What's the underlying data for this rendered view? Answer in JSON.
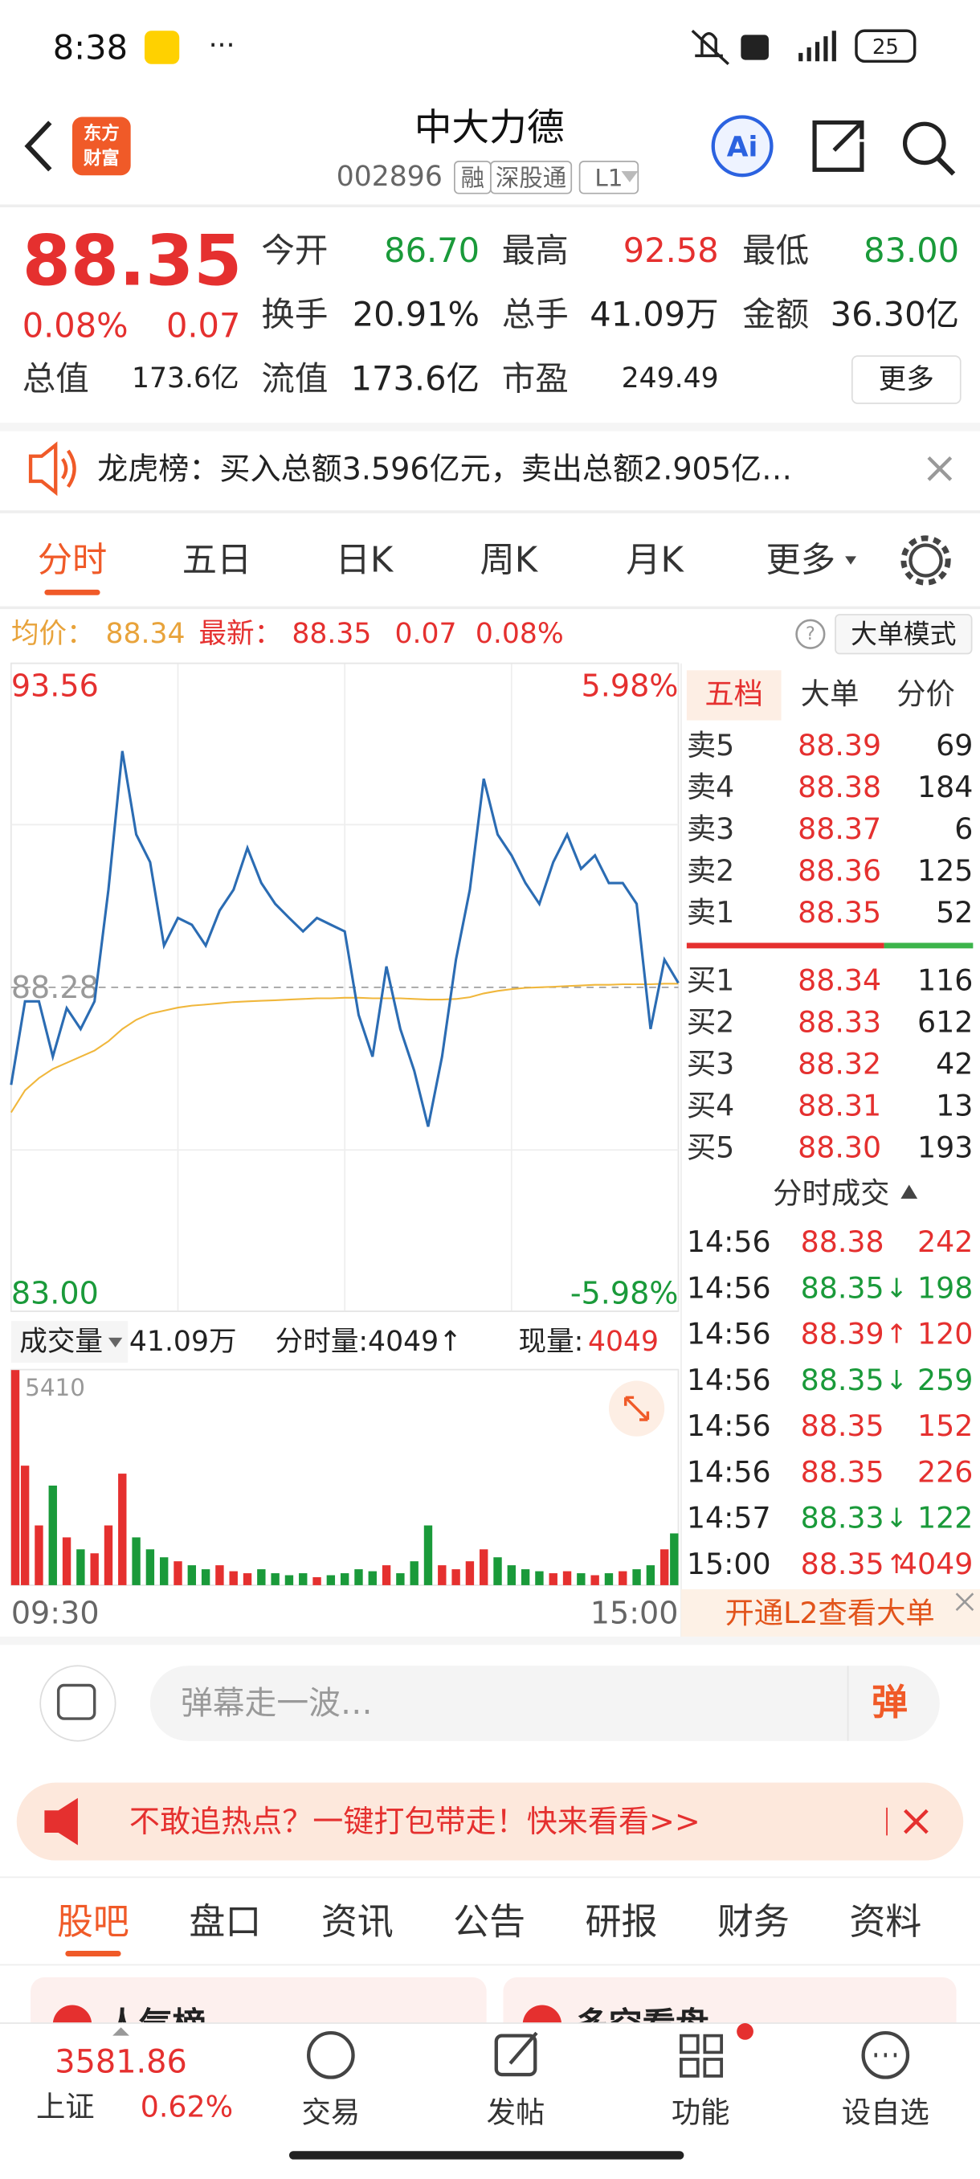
{
  "status": {
    "time": "8:38",
    "battery": "25"
  },
  "header": {
    "title": "中大力德",
    "code": "002896",
    "tags": [
      "融",
      "深股通",
      "L1"
    ],
    "logo": [
      "东方",
      "财富"
    ],
    "ai": "Ai"
  },
  "quote": {
    "price": "88.35",
    "percent": "0.08%",
    "change": "0.07",
    "more": "更多",
    "fields": [
      {
        "label": "今开",
        "value": "86.70",
        "color": "#1a9a3a"
      },
      {
        "label": "最高",
        "value": "92.58",
        "color": "#e5302f"
      },
      {
        "label": "最低",
        "value": "83.00",
        "color": "#1a9a3a"
      },
      {
        "label": "换手",
        "value": "20.91%",
        "color": "#222222"
      },
      {
        "label": "总手",
        "value": "41.09万",
        "color": "#222222"
      },
      {
        "label": "金额",
        "value": "36.30亿",
        "color": "#222222"
      },
      {
        "label": "总值",
        "value": "173.6亿",
        "color": "#222222"
      },
      {
        "label": "流值",
        "value": "173.6亿",
        "color": "#222222"
      },
      {
        "label": "市盈",
        "value": "249.49",
        "color": "#222222"
      }
    ]
  },
  "notice": {
    "text": "龙虎榜：买入总额3.596亿元，卖出总额2.905亿…"
  },
  "tabs": [
    "分时",
    "五日",
    "日K",
    "周K",
    "月K",
    "更多"
  ],
  "info": {
    "avg_label": "均价：",
    "avg": "88.34",
    "latest_label": "最新：",
    "latest": "88.35",
    "change": "0.07",
    "percent": "0.08%",
    "mode": "大单模式"
  },
  "chart_data": [
    {
      "type": "line",
      "categories": [
        "09:30",
        null,
        null,
        null,
        null,
        null,
        null,
        null,
        null,
        null,
        null,
        null,
        null,
        null,
        null,
        null,
        null,
        null,
        null,
        null,
        null,
        null,
        null,
        null,
        null,
        null,
        null,
        null,
        null,
        null,
        null,
        null,
        null,
        null,
        null,
        null,
        null,
        null,
        null,
        null,
        null,
        null,
        null,
        null,
        null,
        null,
        null,
        null,
        "15:00"
      ],
      "series": [
        {
          "color": "#2b6cb3",
          "values": [
            86.69,
            88.05,
            88.05,
            87.15,
            87.94,
            87.6,
            88.05,
            89.87,
            92.13,
            90.77,
            90.32,
            88.96,
            89.41,
            89.3,
            88.96,
            89.53,
            89.87,
            90.55,
            89.98,
            89.64,
            89.41,
            89.19,
            89.41,
            89.3,
            89.19,
            87.83,
            87.15,
            88.62,
            87.6,
            86.92,
            86.01,
            87.15,
            88.73,
            89.87,
            91.68,
            90.77,
            90.43,
            89.98,
            89.64,
            90.32,
            90.77,
            90.21,
            90.43,
            89.98,
            89.98,
            89.64,
            87.6,
            88.73,
            88.35
          ]
        },
        {
          "color": "#f0b73c",
          "values": [
            86.24,
            86.6,
            86.8,
            86.95,
            87.05,
            87.15,
            87.25,
            87.4,
            87.6,
            87.75,
            87.85,
            87.9,
            87.95,
            87.98,
            88.0,
            88.02,
            88.04,
            88.05,
            88.06,
            88.07,
            88.08,
            88.09,
            88.1,
            88.1,
            88.11,
            88.11,
            88.1,
            88.1,
            88.1,
            88.09,
            88.08,
            88.08,
            88.09,
            88.12,
            88.18,
            88.22,
            88.25,
            88.27,
            88.28,
            88.29,
            88.3,
            88.31,
            88.32,
            88.32,
            88.33,
            88.33,
            88.33,
            88.34,
            88.34
          ]
        }
      ],
      "ylim": [
        83,
        93.56
      ],
      "yticks": [
        93.56,
        88.28,
        {
          "value": 83,
          "label": "83.00"
        }
      ],
      "y2lim": [
        -5.98,
        5.98
      ],
      "y2ticks": [
        {
          "value": 5.98,
          "label": "5.98%"
        },
        {
          "value": -5.98,
          "label": "-5.98%"
        }
      ],
      "up_color": "#e5302f",
      "down_color": "#1a9a3a",
      "grid": true
    },
    {
      "type": "bar",
      "title": "成交量",
      "total": "41.09万",
      "period_volume": "分时量:4049↑",
      "current_label": "现量:",
      "current": "4049",
      "values": [
        5400,
        3000,
        1500,
        2500,
        1200,
        900,
        800,
        1500,
        2800,
        1200,
        900,
        700,
        600,
        500,
        400,
        500,
        350,
        300,
        400,
        300,
        250,
        300,
        200,
        250,
        300,
        400,
        350,
        500,
        300,
        600,
        1500,
        500,
        400,
        600,
        900,
        700,
        500,
        400,
        350,
        300,
        350,
        300,
        250,
        300,
        350,
        400,
        500,
        900,
        1300
      ],
      "ylim": [
        0,
        5410
      ],
      "yticks": [
        5410
      ],
      "up_color": "#e5302f",
      "down_color": "#1a9a3a"
    }
  ],
  "book": {
    "tabs": [
      "五档",
      "大单",
      "分价"
    ],
    "price_color": "#e5302f",
    "asks": [
      {
        "label": "卖5",
        "price": "88.39",
        "volume": "69"
      },
      {
        "label": "卖4",
        "price": "88.38",
        "volume": "184"
      },
      {
        "label": "卖3",
        "price": "88.37",
        "volume": "6"
      },
      {
        "label": "卖2",
        "price": "88.36",
        "volume": "125"
      },
      {
        "label": "卖1",
        "price": "88.35",
        "volume": "52"
      }
    ],
    "bids": [
      {
        "label": "买1",
        "price": "88.34",
        "volume": "116"
      },
      {
        "label": "买2",
        "price": "88.33",
        "volume": "612"
      },
      {
        "label": "买3",
        "price": "88.32",
        "volume": "42"
      },
      {
        "label": "买4",
        "price": "88.31",
        "volume": "13"
      },
      {
        "label": "买5",
        "price": "88.30",
        "volume": "193"
      }
    ],
    "trades_title": "分时成交",
    "trades": [
      {
        "time": "14:56",
        "price": "88.38",
        "volume": "242",
        "color": "#e5302f"
      },
      {
        "time": "14:56",
        "price": "88.35",
        "arrow": "↓",
        "volume": "198",
        "color": "#1a9a3a"
      },
      {
        "time": "14:56",
        "price": "88.39",
        "arrow": "↑",
        "volume": "120",
        "color": "#e5302f"
      },
      {
        "time": "14:56",
        "price": "88.35",
        "arrow": "↓",
        "volume": "259",
        "color": "#1a9a3a"
      },
      {
        "time": "14:56",
        "price": "88.35",
        "volume": "152",
        "color": "#e5302f"
      },
      {
        "time": "14:56",
        "price": "88.35",
        "volume": "226",
        "color": "#e5302f"
      },
      {
        "time": "14:57",
        "price": "88.33",
        "arrow": "↓",
        "volume": "122",
        "color": "#1a9a3a"
      },
      {
        "time": "15:00",
        "price": "88.35",
        "arrow": "↑",
        "volume": "4049",
        "color": "#e5302f"
      }
    ],
    "banner": "开通L2查看大单"
  },
  "comment": {
    "placeholder": "弹幕走一波…",
    "button": "弹"
  },
  "ad": {
    "text": "不敢追热点？一键打包带走！快来看看>>"
  },
  "sections": [
    "股吧",
    "盘口",
    "资讯",
    "公告",
    "研报",
    "财务",
    "资料"
  ],
  "cards": [
    "人气榜",
    "多空看盘"
  ],
  "nav": {
    "index_value": "3581.86",
    "index_name": "上证",
    "index_change": "0.62%",
    "items": [
      "交易",
      "发帖",
      "功能",
      "设自选"
    ]
  }
}
